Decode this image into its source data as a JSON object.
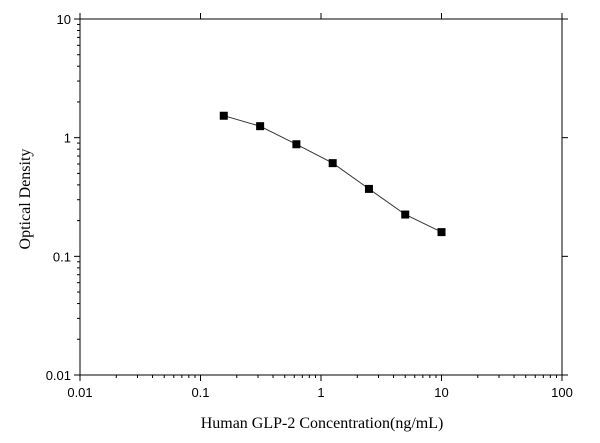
{
  "chart_data": {
    "type": "scatter",
    "title": "",
    "xlabel": "Human GLP-2 Concentration(ng/mL)",
    "ylabel": "Optical Density",
    "xscale": "log",
    "yscale": "log",
    "xlim": [
      0.01,
      100
    ],
    "ylim": [
      0.01,
      10
    ],
    "x_ticks": [
      "0.01",
      "0.1",
      "1",
      "10",
      "100"
    ],
    "y_ticks": [
      "0.01",
      "0.1",
      "1",
      "10"
    ],
    "grid": false,
    "legend": "none",
    "fit_line": true,
    "marker": "square",
    "color": "#000000",
    "series": [
      {
        "points": [
          {
            "x": 0.156,
            "y": 1.53
          },
          {
            "x": 0.3125,
            "y": 1.25
          },
          {
            "x": 0.625,
            "y": 0.88
          },
          {
            "x": 1.25,
            "y": 0.61
          },
          {
            "x": 2.5,
            "y": 0.37
          },
          {
            "x": 5,
            "y": 0.225
          },
          {
            "x": 10,
            "y": 0.16
          }
        ]
      }
    ]
  }
}
